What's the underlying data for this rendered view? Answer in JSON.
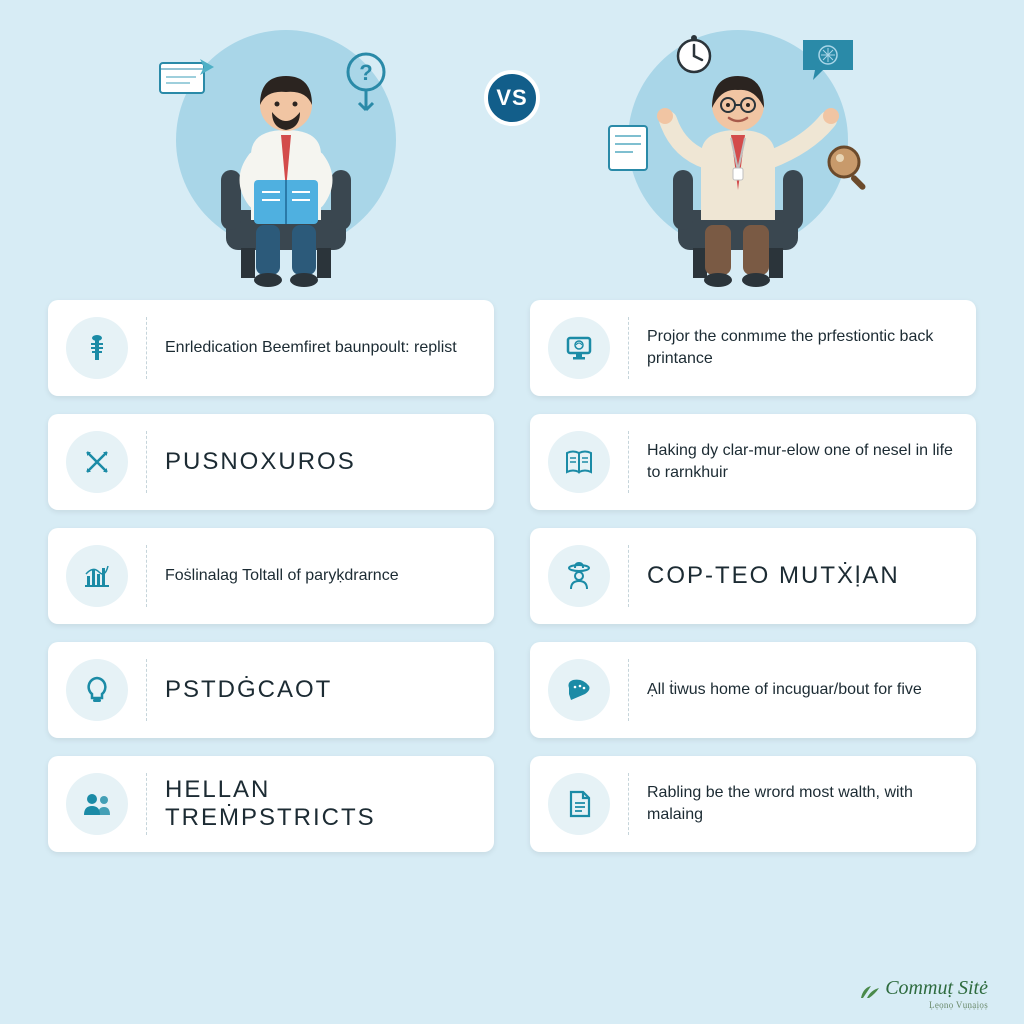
{
  "colors": {
    "page_bg": "#d7ecf5",
    "circle_bg": "#a9d6e8",
    "card_bg": "#ffffff",
    "icon_bg": "#e6f2f6",
    "icon_color": "#1b8ba6",
    "text_color": "#1c2b33",
    "vs_bg": "#125e8a",
    "vs_text": "#ffffff",
    "divider": "#c5d4da",
    "logo_color": "#2e6b3e"
  },
  "vs_label": "VS",
  "left_items": [
    {
      "icon": "staff",
      "style": "small",
      "text": "Enrledication Beemfiret baunpoult: replist"
    },
    {
      "icon": "cross-arrows",
      "style": "big",
      "text": "PUSNOXUROS"
    },
    {
      "icon": "bar-chart",
      "style": "small",
      "text": "Foṡlinalag Toltall of paryḳdrarnce"
    },
    {
      "icon": "bulb",
      "style": "big",
      "text": "PSTDĠCAOT"
    },
    {
      "icon": "people",
      "style": "big",
      "text": "HELLAN TREṀPSTRICTS"
    }
  ],
  "right_items": [
    {
      "icon": "monitor",
      "style": "small",
      "text": "Projor the conmıme the prfestiontic back printance"
    },
    {
      "icon": "book",
      "style": "small",
      "text": "Haking dy clar-mur-elow one of nesel in life to rarnkhuir"
    },
    {
      "icon": "user-hat",
      "style": "big",
      "text": "COP-TEO MUTẊḷAN"
    },
    {
      "icon": "pen",
      "style": "small",
      "text": "Ạll ṫiwus home of incuguar/bout for five"
    },
    {
      "icon": "document",
      "style": "small",
      "text": "Rabling be the wrord most walth, with malaing"
    }
  ],
  "footer": {
    "main": "Commuṭ Sitė",
    "sub": "Ḷẹọnọ Vụṇạịọṣ"
  }
}
